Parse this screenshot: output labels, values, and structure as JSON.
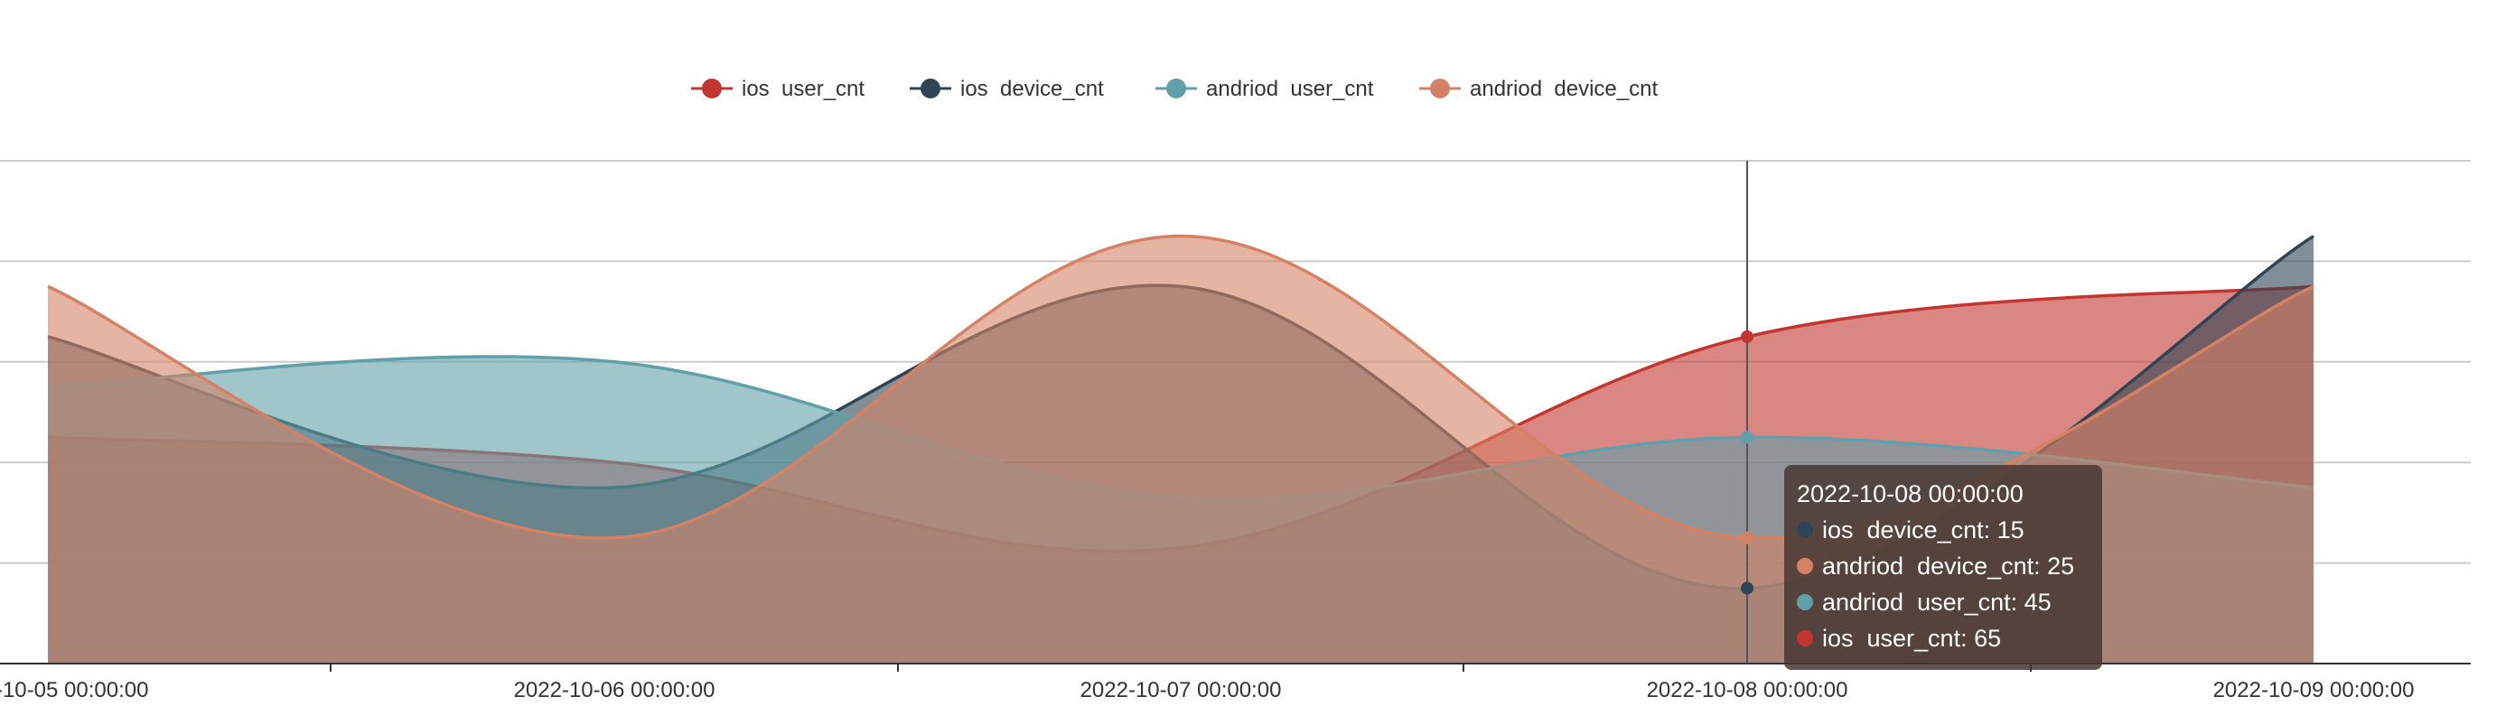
{
  "chart_data": {
    "type": "area",
    "smooth": true,
    "x": [
      "2022-10-05 00:00:00",
      "2022-10-06 00:00:00",
      "2022-10-07 00:00:00",
      "2022-10-08 00:00:00",
      "2022-10-09 00:00:00"
    ],
    "ylim": [
      0,
      100
    ],
    "grid": true,
    "legend_position": "top-center",
    "series": [
      {
        "name": "ios  user_cnt",
        "color": "#c23531",
        "values": [
          45,
          40,
          23,
          65,
          75
        ]
      },
      {
        "name": "ios  device_cnt",
        "color": "#2f4554",
        "values": [
          65,
          35,
          75,
          15,
          85
        ]
      },
      {
        "name": "andriod  user_cnt",
        "color": "#61a0a8",
        "values": [
          55,
          60,
          33,
          45,
          35
        ]
      },
      {
        "name": "andriod  device_cnt",
        "color": "#d48265",
        "values": [
          75,
          25,
          85,
          25,
          75
        ]
      }
    ],
    "tooltip": {
      "title": "2022-10-08 00:00:00",
      "rows": [
        {
          "label": "ios  device_cnt: 15",
          "color": "#2f4554"
        },
        {
          "label": "andriod  device_cnt: 25",
          "color": "#d48265"
        },
        {
          "label": "andriod  user_cnt: 45",
          "color": "#61a0a8"
        },
        {
          "label": "ios  user_cnt: 65",
          "color": "#c23531"
        }
      ]
    }
  }
}
